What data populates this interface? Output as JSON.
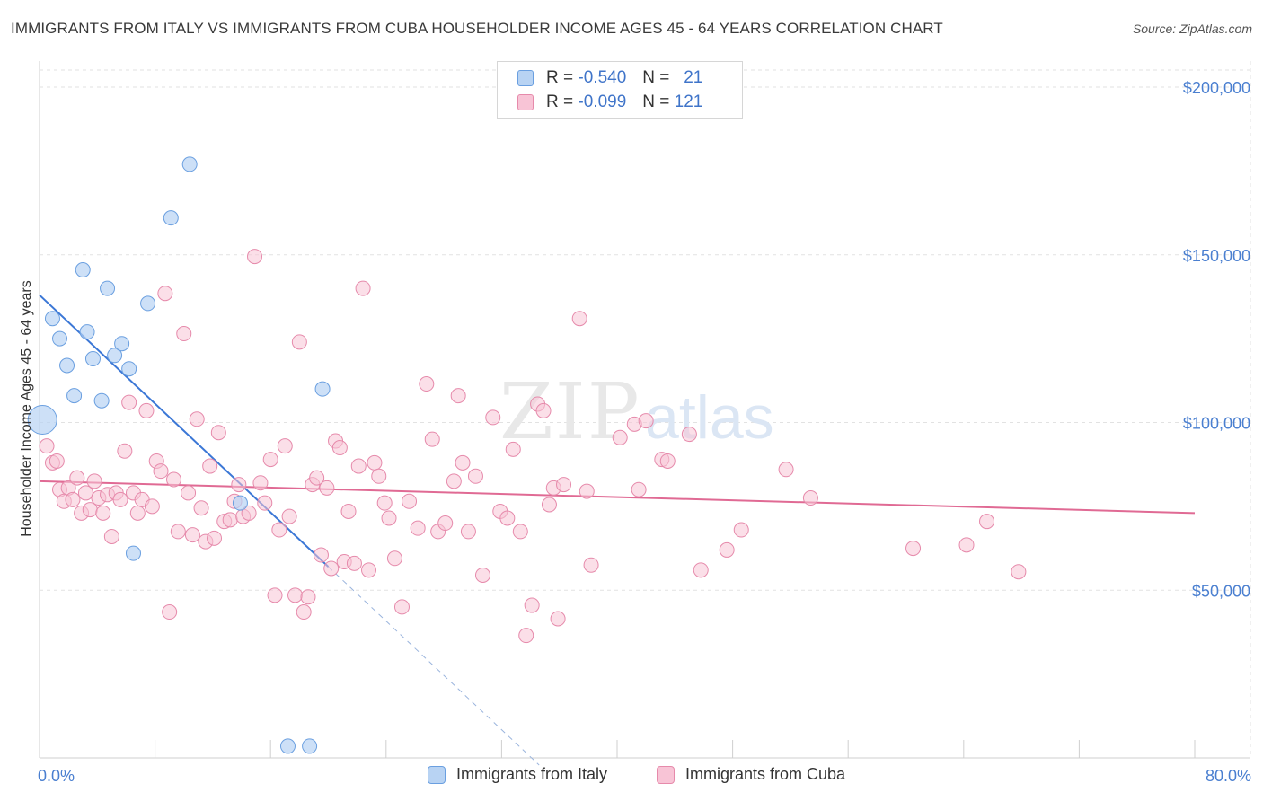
{
  "title": "IMMIGRANTS FROM ITALY VS IMMIGRANTS FROM CUBA HOUSEHOLDER INCOME AGES 45 - 64 YEARS CORRELATION CHART",
  "source": "Source: ZipAtlas.com",
  "watermark": {
    "zip": "ZIP",
    "atlas": "atlas"
  },
  "legend": {
    "italy": {
      "r_label": "R =",
      "r_value": "-0.540",
      "n_label": "N =",
      "n_value": "21"
    },
    "cuba": {
      "r_label": "R =",
      "r_value": "-0.099",
      "n_label": "N =",
      "n_value": "121"
    }
  },
  "colors": {
    "italy_fill": "#b8d3f3",
    "italy_stroke": "#6a9fe0",
    "italy_line": "#3b77d6",
    "cuba_fill": "#f8c4d6",
    "cuba_stroke": "#e68aab",
    "cuba_line": "#e06a94",
    "tick_text": "#4a7fd0",
    "grid": "#e2e2e2"
  },
  "chart_data": {
    "type": "scatter",
    "title": "IMMIGRANTS FROM ITALY VS IMMIGRANTS FROM CUBA HOUSEHOLDER INCOME AGES 45 - 64 YEARS CORRELATION CHART",
    "xlabel": "",
    "ylabel": "Householder Income Ages 45 - 64 years",
    "xlim": [
      0,
      80
    ],
    "ylim": [
      0,
      210000
    ],
    "x_tick_labels": [
      "0.0%",
      "80.0%"
    ],
    "y_ticks": [
      50000,
      100000,
      150000,
      200000
    ],
    "y_tick_labels": [
      "$50,000",
      "$100,000",
      "$150,000",
      "$200,000"
    ],
    "grid": true,
    "legend_position": "top-center",
    "series": [
      {
        "name": "Immigrants from Italy",
        "trend": {
          "x0": 0,
          "y0": 138000,
          "x1": 20,
          "y1": 57000,
          "dash_to_x": 34.6
        },
        "points": [
          [
            0.2,
            100800
          ],
          [
            0.9,
            131000
          ],
          [
            1.4,
            125000
          ],
          [
            1.9,
            117000
          ],
          [
            2.4,
            108000
          ],
          [
            3.0,
            145500
          ],
          [
            3.3,
            127000
          ],
          [
            3.7,
            119000
          ],
          [
            4.3,
            106500
          ],
          [
            4.7,
            140000
          ],
          [
            5.2,
            120000
          ],
          [
            5.7,
            123500
          ],
          [
            6.2,
            116000
          ],
          [
            6.5,
            61000
          ],
          [
            7.5,
            135500
          ],
          [
            9.1,
            161000
          ],
          [
            10.4,
            177000
          ],
          [
            13.9,
            76000
          ],
          [
            17.2,
            3500
          ],
          [
            18.7,
            3500
          ],
          [
            19.6,
            110000
          ]
        ]
      },
      {
        "name": "Immigrants from Cuba",
        "trend": {
          "x0": 0,
          "y0": 82500,
          "x1": 80,
          "y1": 73000
        },
        "points": [
          [
            0.5,
            93000
          ],
          [
            0.9,
            88000
          ],
          [
            1.2,
            88500
          ],
          [
            1.4,
            80000
          ],
          [
            1.7,
            76500
          ],
          [
            2.0,
            80500
          ],
          [
            2.3,
            77000
          ],
          [
            2.6,
            83500
          ],
          [
            2.9,
            73000
          ],
          [
            3.2,
            79000
          ],
          [
            3.5,
            74000
          ],
          [
            3.8,
            82500
          ],
          [
            4.1,
            77500
          ],
          [
            4.4,
            73000
          ],
          [
            4.7,
            78500
          ],
          [
            5.0,
            66000
          ],
          [
            5.3,
            79000
          ],
          [
            5.6,
            77000
          ],
          [
            5.9,
            91500
          ],
          [
            6.2,
            106000
          ],
          [
            6.5,
            79000
          ],
          [
            6.8,
            73000
          ],
          [
            7.1,
            77000
          ],
          [
            7.4,
            103500
          ],
          [
            7.8,
            75000
          ],
          [
            8.1,
            88500
          ],
          [
            8.4,
            85500
          ],
          [
            8.7,
            138500
          ],
          [
            9.0,
            43500
          ],
          [
            9.3,
            83000
          ],
          [
            9.6,
            67500
          ],
          [
            10.0,
            126500
          ],
          [
            10.3,
            79000
          ],
          [
            10.6,
            66500
          ],
          [
            10.9,
            101000
          ],
          [
            11.2,
            74500
          ],
          [
            11.5,
            64500
          ],
          [
            11.8,
            87000
          ],
          [
            12.1,
            65500
          ],
          [
            12.4,
            97000
          ],
          [
            12.8,
            70500
          ],
          [
            13.2,
            71000
          ],
          [
            13.5,
            76500
          ],
          [
            13.8,
            81500
          ],
          [
            14.1,
            72000
          ],
          [
            14.5,
            73000
          ],
          [
            14.9,
            149500
          ],
          [
            15.3,
            82000
          ],
          [
            15.6,
            76000
          ],
          [
            16.0,
            89000
          ],
          [
            16.3,
            48500
          ],
          [
            16.6,
            68000
          ],
          [
            17.0,
            93000
          ],
          [
            17.3,
            72000
          ],
          [
            17.7,
            48500
          ],
          [
            18.0,
            124000
          ],
          [
            18.3,
            43500
          ],
          [
            18.6,
            48000
          ],
          [
            18.9,
            81500
          ],
          [
            19.2,
            83500
          ],
          [
            19.5,
            60500
          ],
          [
            19.9,
            80500
          ],
          [
            20.2,
            56500
          ],
          [
            20.5,
            94500
          ],
          [
            20.8,
            92500
          ],
          [
            21.1,
            58500
          ],
          [
            21.4,
            73500
          ],
          [
            21.8,
            58000
          ],
          [
            22.1,
            87000
          ],
          [
            22.4,
            140000
          ],
          [
            22.8,
            56000
          ],
          [
            23.2,
            88000
          ],
          [
            23.5,
            84000
          ],
          [
            23.9,
            76000
          ],
          [
            24.2,
            71500
          ],
          [
            24.6,
            59500
          ],
          [
            25.1,
            45000
          ],
          [
            25.6,
            76500
          ],
          [
            26.2,
            68500
          ],
          [
            26.8,
            111500
          ],
          [
            27.2,
            95000
          ],
          [
            27.6,
            67500
          ],
          [
            28.1,
            70000
          ],
          [
            28.7,
            82500
          ],
          [
            29.0,
            108000
          ],
          [
            29.3,
            88000
          ],
          [
            29.7,
            67500
          ],
          [
            30.2,
            84000
          ],
          [
            30.7,
            54500
          ],
          [
            31.4,
            101500
          ],
          [
            31.9,
            73500
          ],
          [
            32.4,
            71500
          ],
          [
            32.8,
            92000
          ],
          [
            33.3,
            67500
          ],
          [
            33.7,
            36500
          ],
          [
            34.1,
            45500
          ],
          [
            34.5,
            105500
          ],
          [
            34.9,
            103500
          ],
          [
            35.3,
            75500
          ],
          [
            35.6,
            80500
          ],
          [
            35.9,
            41500
          ],
          [
            36.3,
            81500
          ],
          [
            37.4,
            131000
          ],
          [
            37.9,
            79500
          ],
          [
            38.2,
            57500
          ],
          [
            40.2,
            95500
          ],
          [
            41.2,
            99500
          ],
          [
            41.5,
            80000
          ],
          [
            42.0,
            100500
          ],
          [
            43.1,
            89000
          ],
          [
            43.5,
            88500
          ],
          [
            45.0,
            96500
          ],
          [
            45.8,
            56000
          ],
          [
            47.6,
            62000
          ],
          [
            48.6,
            68000
          ],
          [
            51.7,
            86000
          ],
          [
            53.4,
            77500
          ],
          [
            60.5,
            62500
          ],
          [
            64.2,
            63500
          ],
          [
            65.6,
            70500
          ],
          [
            67.8,
            55500
          ]
        ]
      }
    ]
  },
  "bottom_legend": {
    "italy_label": "Immigrants from Italy",
    "cuba_label": "Immigrants from Cuba"
  }
}
